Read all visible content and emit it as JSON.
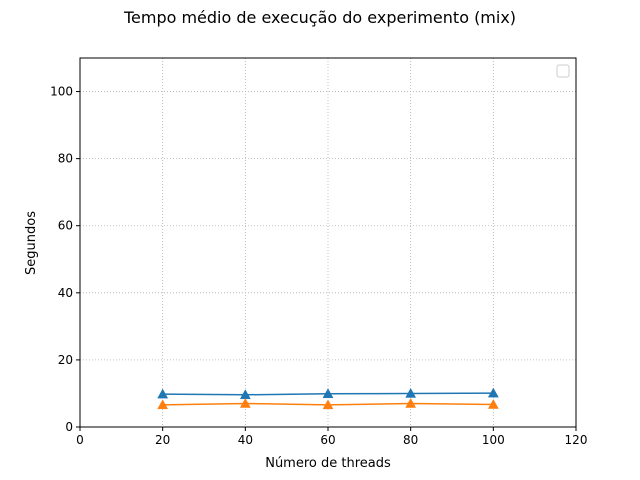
{
  "chart_data": {
    "type": "line",
    "title": "Tempo médio de execução do experimento (mix)",
    "xlabel": "Número de threads",
    "ylabel": "Segundos",
    "xlim": [
      0,
      120
    ],
    "ylim": [
      0,
      110
    ],
    "xticks": [
      "0",
      "20",
      "40",
      "60",
      "80",
      "100",
      "120"
    ],
    "yticks": [
      "0",
      "20",
      "40",
      "60",
      "80",
      "100"
    ],
    "grid": true,
    "grid_style": "dotted",
    "legend": {
      "placement": "top-right",
      "entries": []
    },
    "marker": "triangle-up",
    "x": [
      20,
      40,
      60,
      80,
      100
    ],
    "series": [
      {
        "values": [
          9.8,
          9.6,
          9.9,
          10.0,
          10.1
        ],
        "color": "#1f77b4"
      },
      {
        "values": [
          6.6,
          7.0,
          6.6,
          7.0,
          6.7
        ],
        "color": "#ff7f0e"
      }
    ]
  }
}
